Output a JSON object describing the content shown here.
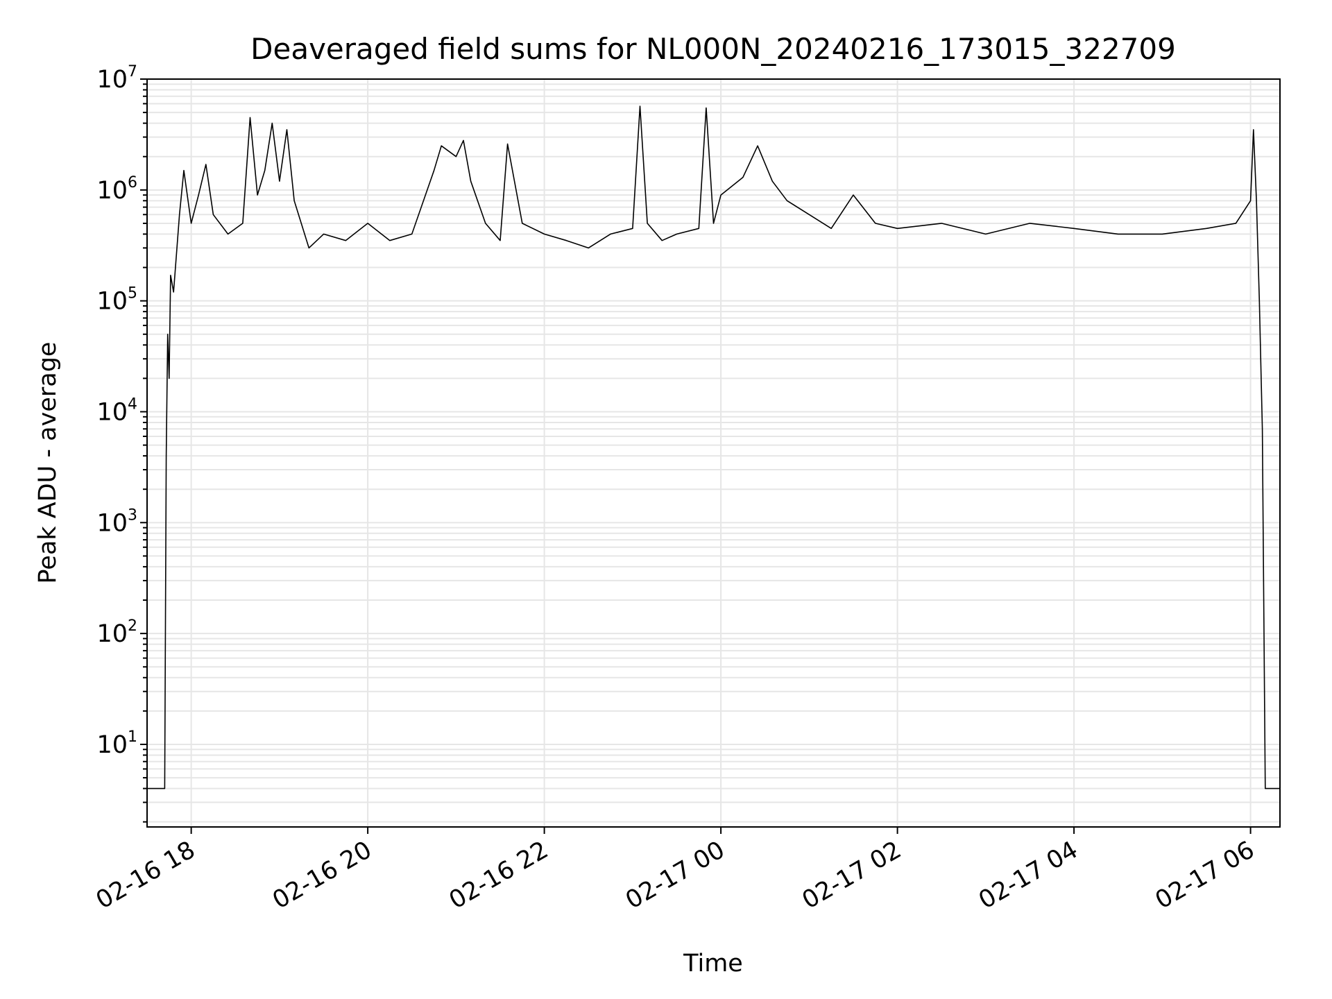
{
  "chart_data": {
    "type": "line",
    "title": "Deaveraged field sums for NL000N_20240216_173015_322709",
    "xlabel": "Time",
    "ylabel": "Peak ADU - average",
    "xlim": [
      "2024-02-16T17:30",
      "2024-02-17T06:20"
    ],
    "yscale": "log",
    "ylim": [
      1.8,
      10000000
    ],
    "grid": true,
    "legend": "none",
    "line_color": "#000000",
    "grid_color": "#e6e6e6",
    "x_ticks": [
      {
        "value": "2024-02-16T18:00",
        "label": "02-16 18"
      },
      {
        "value": "2024-02-16T20:00",
        "label": "02-16 20"
      },
      {
        "value": "2024-02-16T22:00",
        "label": "02-16 22"
      },
      {
        "value": "2024-02-17T00:00",
        "label": "02-17 00"
      },
      {
        "value": "2024-02-17T02:00",
        "label": "02-17 02"
      },
      {
        "value": "2024-02-17T04:00",
        "label": "02-17 04"
      },
      {
        "value": "2024-02-17T06:00",
        "label": "02-17 06"
      }
    ],
    "y_ticks": [
      {
        "value": 10,
        "base": "10",
        "exp": "1"
      },
      {
        "value": 100,
        "base": "10",
        "exp": "2"
      },
      {
        "value": 1000,
        "base": "10",
        "exp": "3"
      },
      {
        "value": 10000,
        "base": "10",
        "exp": "4"
      },
      {
        "value": 100000,
        "base": "10",
        "exp": "5"
      },
      {
        "value": 1000000,
        "base": "10",
        "exp": "6"
      },
      {
        "value": 10000000,
        "base": "10",
        "exp": "7"
      }
    ],
    "series": [
      {
        "points": [
          [
            "2024-02-16T17:30",
            4
          ],
          [
            "2024-02-16T17:42",
            4
          ],
          [
            "2024-02-16T17:43",
            4000
          ],
          [
            "2024-02-16T17:44",
            50000
          ],
          [
            "2024-02-16T17:45",
            20000
          ],
          [
            "2024-02-16T17:46",
            170000
          ],
          [
            "2024-02-16T17:48",
            120000
          ],
          [
            "2024-02-16T17:52",
            600000
          ],
          [
            "2024-02-16T17:55",
            1500000
          ],
          [
            "2024-02-16T18:00",
            500000
          ],
          [
            "2024-02-16T18:05",
            900000
          ],
          [
            "2024-02-16T18:10",
            1700000
          ],
          [
            "2024-02-16T18:15",
            600000
          ],
          [
            "2024-02-16T18:25",
            400000
          ],
          [
            "2024-02-16T18:35",
            500000
          ],
          [
            "2024-02-16T18:40",
            4500000
          ],
          [
            "2024-02-16T18:45",
            900000
          ],
          [
            "2024-02-16T18:50",
            1500000
          ],
          [
            "2024-02-16T18:55",
            4000000
          ],
          [
            "2024-02-16T19:00",
            1200000
          ],
          [
            "2024-02-16T19:05",
            3500000
          ],
          [
            "2024-02-16T19:10",
            800000
          ],
          [
            "2024-02-16T19:20",
            300000
          ],
          [
            "2024-02-16T19:30",
            400000
          ],
          [
            "2024-02-16T19:45",
            350000
          ],
          [
            "2024-02-16T20:00",
            500000
          ],
          [
            "2024-02-16T20:15",
            350000
          ],
          [
            "2024-02-16T20:30",
            400000
          ],
          [
            "2024-02-16T20:45",
            1500000
          ],
          [
            "2024-02-16T20:50",
            2500000
          ],
          [
            "2024-02-16T21:00",
            2000000
          ],
          [
            "2024-02-16T21:05",
            2800000
          ],
          [
            "2024-02-16T21:10",
            1200000
          ],
          [
            "2024-02-16T21:20",
            500000
          ],
          [
            "2024-02-16T21:30",
            350000
          ],
          [
            "2024-02-16T21:35",
            2600000
          ],
          [
            "2024-02-16T21:45",
            500000
          ],
          [
            "2024-02-16T22:00",
            400000
          ],
          [
            "2024-02-16T22:15",
            350000
          ],
          [
            "2024-02-16T22:30",
            300000
          ],
          [
            "2024-02-16T22:45",
            400000
          ],
          [
            "2024-02-16T23:00",
            450000
          ],
          [
            "2024-02-16T23:05",
            5700000
          ],
          [
            "2024-02-16T23:10",
            500000
          ],
          [
            "2024-02-16T23:20",
            350000
          ],
          [
            "2024-02-16T23:30",
            400000
          ],
          [
            "2024-02-16T23:45",
            450000
          ],
          [
            "2024-02-16T23:50",
            5500000
          ],
          [
            "2024-02-16T23:55",
            500000
          ],
          [
            "2024-02-17T00:00",
            900000
          ],
          [
            "2024-02-17T00:15",
            1300000
          ],
          [
            "2024-02-17T00:25",
            2500000
          ],
          [
            "2024-02-17T00:35",
            1200000
          ],
          [
            "2024-02-17T00:45",
            800000
          ],
          [
            "2024-02-17T01:00",
            600000
          ],
          [
            "2024-02-17T01:15",
            450000
          ],
          [
            "2024-02-17T01:30",
            900000
          ],
          [
            "2024-02-17T01:45",
            500000
          ],
          [
            "2024-02-17T02:00",
            450000
          ],
          [
            "2024-02-17T02:30",
            500000
          ],
          [
            "2024-02-17T03:00",
            400000
          ],
          [
            "2024-02-17T03:30",
            500000
          ],
          [
            "2024-02-17T04:00",
            450000
          ],
          [
            "2024-02-17T04:30",
            400000
          ],
          [
            "2024-02-17T05:00",
            400000
          ],
          [
            "2024-02-17T05:30",
            450000
          ],
          [
            "2024-02-17T05:50",
            500000
          ],
          [
            "2024-02-17T06:00",
            800000
          ],
          [
            "2024-02-17T06:02",
            3500000
          ],
          [
            "2024-02-17T06:04",
            800000
          ],
          [
            "2024-02-17T06:06",
            100000
          ],
          [
            "2024-02-17T06:08",
            7000
          ],
          [
            "2024-02-17T06:10",
            4
          ],
          [
            "2024-02-17T06:20",
            4
          ]
        ]
      }
    ]
  }
}
